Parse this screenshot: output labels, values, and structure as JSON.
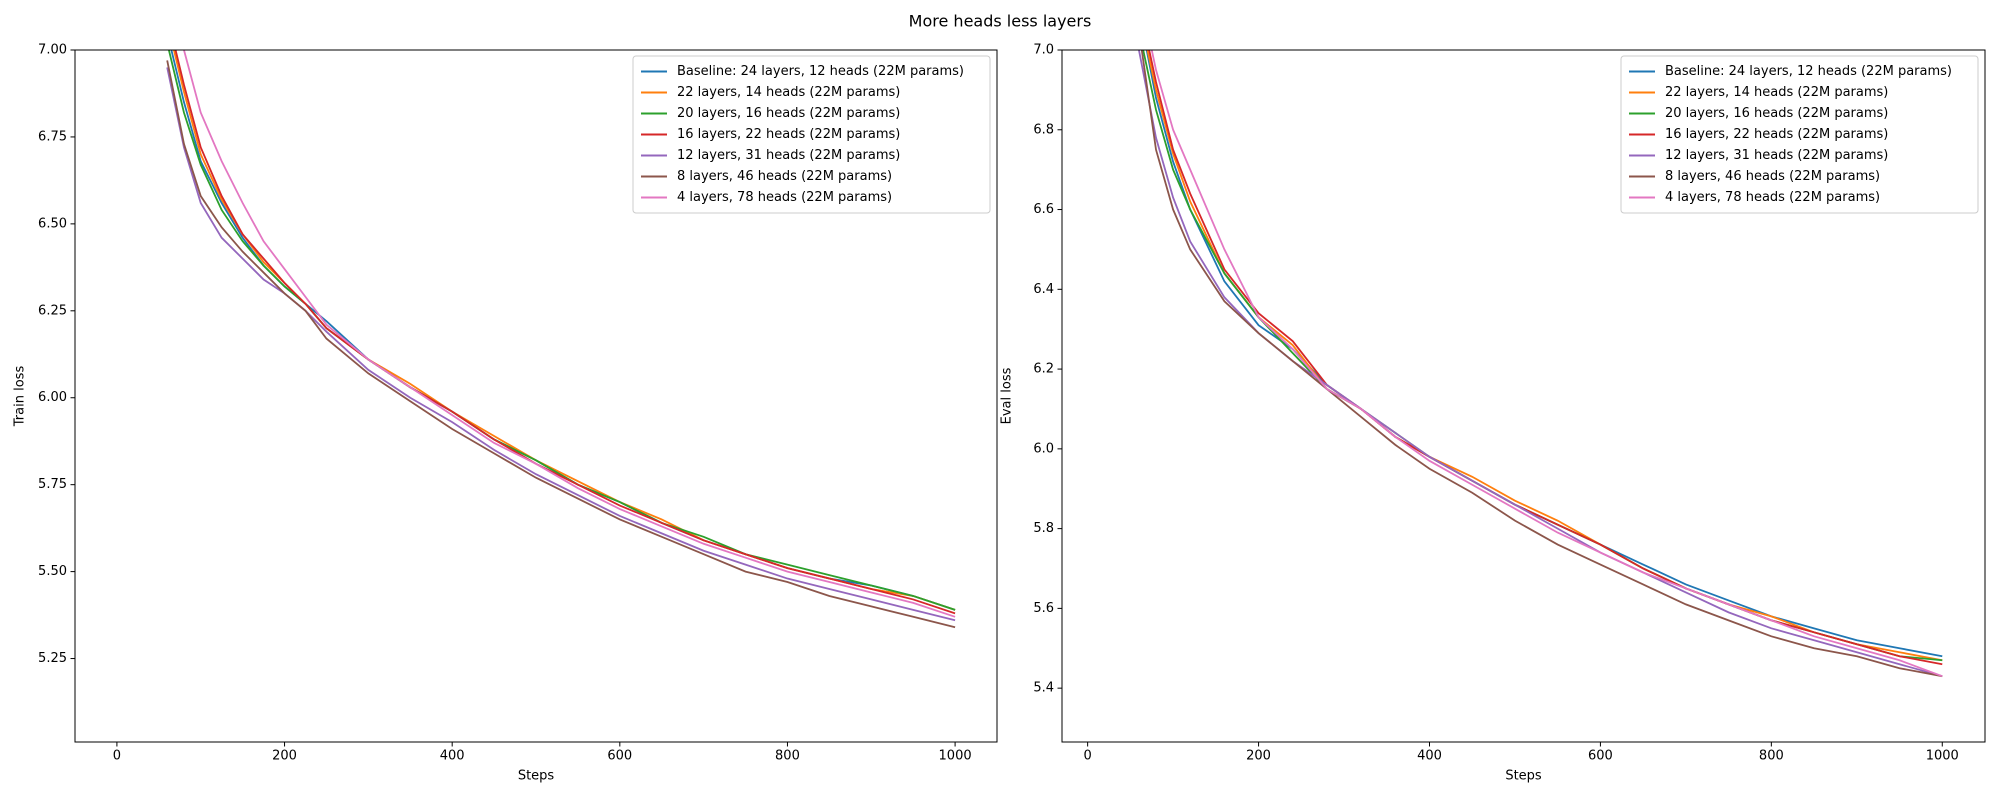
{
  "title": "More heads less layers",
  "chart_data": [
    {
      "type": "line",
      "xlabel": "Steps",
      "ylabel": "Train loss",
      "legend": "upper right",
      "grid": false,
      "xlim": [
        -50,
        1050
      ],
      "ylim": [
        5.01,
        7.0
      ],
      "xticks": [
        0,
        200,
        400,
        600,
        800,
        1000
      ],
      "yticks": [
        5.25,
        {
          "value": 5.5,
          "label": "5.50"
        },
        5.75,
        {
          "value": 6.0,
          "label": "6.00"
        },
        6.25,
        {
          "value": 6.5,
          "label": "6.50"
        },
        6.75,
        {
          "value": 7.0,
          "label": "7.00"
        }
      ],
      "x": [
        60,
        80,
        100,
        125,
        150,
        175,
        200,
        225,
        250,
        300,
        350,
        400,
        450,
        500,
        550,
        600,
        650,
        700,
        750,
        800,
        850,
        900,
        950,
        1000
      ],
      "series": [
        {
          "name": "Baseline: 24 layers, 12 heads (22M params)",
          "color": "#1f77b4",
          "values": [
            7.05,
            6.85,
            6.68,
            6.56,
            6.46,
            6.38,
            6.32,
            6.27,
            6.22,
            6.11,
            6.03,
            5.96,
            5.88,
            5.82,
            5.75,
            5.7,
            5.64,
            5.59,
            5.55,
            5.51,
            5.48,
            5.46,
            5.43,
            5.39
          ]
        },
        {
          "name": "22 layers, 14 heads (22M params)",
          "color": "#ff7f0e",
          "values": [
            7.08,
            6.88,
            6.7,
            6.57,
            6.47,
            6.39,
            6.33,
            6.27,
            6.2,
            6.11,
            6.04,
            5.96,
            5.89,
            5.82,
            5.76,
            5.7,
            5.65,
            5.59,
            5.55,
            5.51,
            5.48,
            5.45,
            5.43,
            5.39
          ]
        },
        {
          "name": "20 layers, 16 heads (22M params)",
          "color": "#2ca02c",
          "values": [
            7.02,
            6.82,
            6.67,
            6.54,
            6.45,
            6.38,
            6.32,
            6.27,
            6.2,
            6.11,
            6.03,
            5.96,
            5.88,
            5.82,
            5.75,
            5.7,
            5.64,
            5.6,
            5.55,
            5.52,
            5.49,
            5.46,
            5.43,
            5.39
          ]
        },
        {
          "name": "16 layers, 22 heads (22M params)",
          "color": "#d62728",
          "values": [
            7.1,
            6.9,
            6.72,
            6.58,
            6.47,
            6.4,
            6.33,
            6.27,
            6.2,
            6.11,
            6.03,
            5.96,
            5.88,
            5.81,
            5.75,
            5.69,
            5.64,
            5.59,
            5.55,
            5.51,
            5.48,
            5.45,
            5.42,
            5.38
          ]
        },
        {
          "name": "12 layers, 31 heads (22M params)",
          "color": "#9467bd",
          "values": [
            6.95,
            6.72,
            6.56,
            6.46,
            6.4,
            6.34,
            6.3,
            6.25,
            6.19,
            6.08,
            6.0,
            5.93,
            5.85,
            5.78,
            5.72,
            5.66,
            5.61,
            5.56,
            5.52,
            5.48,
            5.45,
            5.42,
            5.39,
            5.36
          ]
        },
        {
          "name": "8 layers, 46 heads (22M params)",
          "color": "#8c564b",
          "values": [
            6.97,
            6.73,
            6.58,
            6.49,
            6.42,
            6.36,
            6.3,
            6.25,
            6.17,
            6.07,
            5.99,
            5.91,
            5.84,
            5.77,
            5.71,
            5.65,
            5.6,
            5.55,
            5.5,
            5.47,
            5.43,
            5.4,
            5.37,
            5.34
          ]
        },
        {
          "name": "4 layers, 78 heads (22M params)",
          "color": "#e377c2",
          "values": [
            7.15,
            7.0,
            6.82,
            6.68,
            6.56,
            6.45,
            6.37,
            6.29,
            6.21,
            6.11,
            6.03,
            5.95,
            5.87,
            5.81,
            5.74,
            5.68,
            5.63,
            5.58,
            5.54,
            5.5,
            5.47,
            5.44,
            5.41,
            5.37
          ]
        }
      ]
    },
    {
      "type": "line",
      "xlabel": "Steps",
      "ylabel": "Eval loss",
      "legend": "upper right",
      "grid": false,
      "xlim": [
        -30,
        1050
      ],
      "ylim": [
        5.265,
        7.0
      ],
      "xticks": [
        0,
        200,
        400,
        600,
        800,
        1000
      ],
      "yticks": [
        5.4,
        5.6,
        5.8,
        {
          "value": 6.0,
          "label": "6.0"
        },
        6.2,
        6.4,
        6.6,
        6.8,
        {
          "value": 7.0,
          "label": "7.0"
        }
      ],
      "x": [
        60,
        80,
        100,
        120,
        160,
        200,
        240,
        280,
        320,
        360,
        400,
        450,
        500,
        550,
        600,
        650,
        700,
        750,
        800,
        850,
        900,
        950,
        1000
      ],
      "series": [
        {
          "name": "Baseline: 24 layers, 12 heads (22M params)",
          "color": "#1f77b4",
          "values": [
            7.1,
            6.88,
            6.72,
            6.6,
            6.42,
            6.31,
            6.25,
            6.16,
            6.1,
            6.03,
            5.98,
            5.92,
            5.86,
            5.81,
            5.76,
            5.71,
            5.66,
            5.62,
            5.58,
            5.55,
            5.52,
            5.5,
            5.48
          ]
        },
        {
          "name": "22 layers, 14 heads (22M params)",
          "color": "#ff7f0e",
          "values": [
            7.1,
            6.9,
            6.74,
            6.62,
            6.44,
            6.33,
            6.26,
            6.15,
            6.1,
            6.03,
            5.98,
            5.93,
            5.87,
            5.82,
            5.76,
            5.7,
            5.65,
            5.61,
            5.58,
            5.54,
            5.51,
            5.49,
            5.47
          ]
        },
        {
          "name": "20 layers, 16 heads (22M params)",
          "color": "#2ca02c",
          "values": [
            7.05,
            6.85,
            6.7,
            6.6,
            6.44,
            6.33,
            6.24,
            6.15,
            6.1,
            6.04,
            5.98,
            5.92,
            5.86,
            5.81,
            5.76,
            5.7,
            5.65,
            5.61,
            5.57,
            5.54,
            5.51,
            5.48,
            5.47
          ]
        },
        {
          "name": "16 layers, 22 heads (22M params)",
          "color": "#d62728",
          "values": [
            7.12,
            6.92,
            6.75,
            6.64,
            6.45,
            6.34,
            6.27,
            6.16,
            6.1,
            6.03,
            5.98,
            5.92,
            5.86,
            5.81,
            5.76,
            5.7,
            5.65,
            5.61,
            5.57,
            5.54,
            5.51,
            5.48,
            5.46
          ]
        },
        {
          "name": "12 layers, 31 heads (22M params)",
          "color": "#9467bd",
          "values": [
            7.0,
            6.78,
            6.63,
            6.52,
            6.38,
            6.29,
            6.22,
            6.16,
            6.1,
            6.04,
            5.98,
            5.92,
            5.86,
            5.8,
            5.74,
            5.69,
            5.64,
            5.59,
            5.55,
            5.52,
            5.49,
            5.46,
            5.43
          ]
        },
        {
          "name": "8 layers, 46 heads (22M params)",
          "color": "#8c564b",
          "values": [
            7.05,
            6.75,
            6.6,
            6.5,
            6.37,
            6.29,
            6.22,
            6.15,
            6.08,
            6.01,
            5.95,
            5.89,
            5.82,
            5.76,
            5.71,
            5.66,
            5.61,
            5.57,
            5.53,
            5.5,
            5.48,
            5.45,
            5.43
          ]
        },
        {
          "name": "4 layers, 78 heads (22M params)",
          "color": "#e377c2",
          "values": [
            7.15,
            6.95,
            6.8,
            6.7,
            6.5,
            6.33,
            6.25,
            6.15,
            6.1,
            6.03,
            5.97,
            5.91,
            5.85,
            5.79,
            5.74,
            5.69,
            5.65,
            5.61,
            5.57,
            5.53,
            5.5,
            5.47,
            5.43
          ]
        }
      ]
    }
  ]
}
